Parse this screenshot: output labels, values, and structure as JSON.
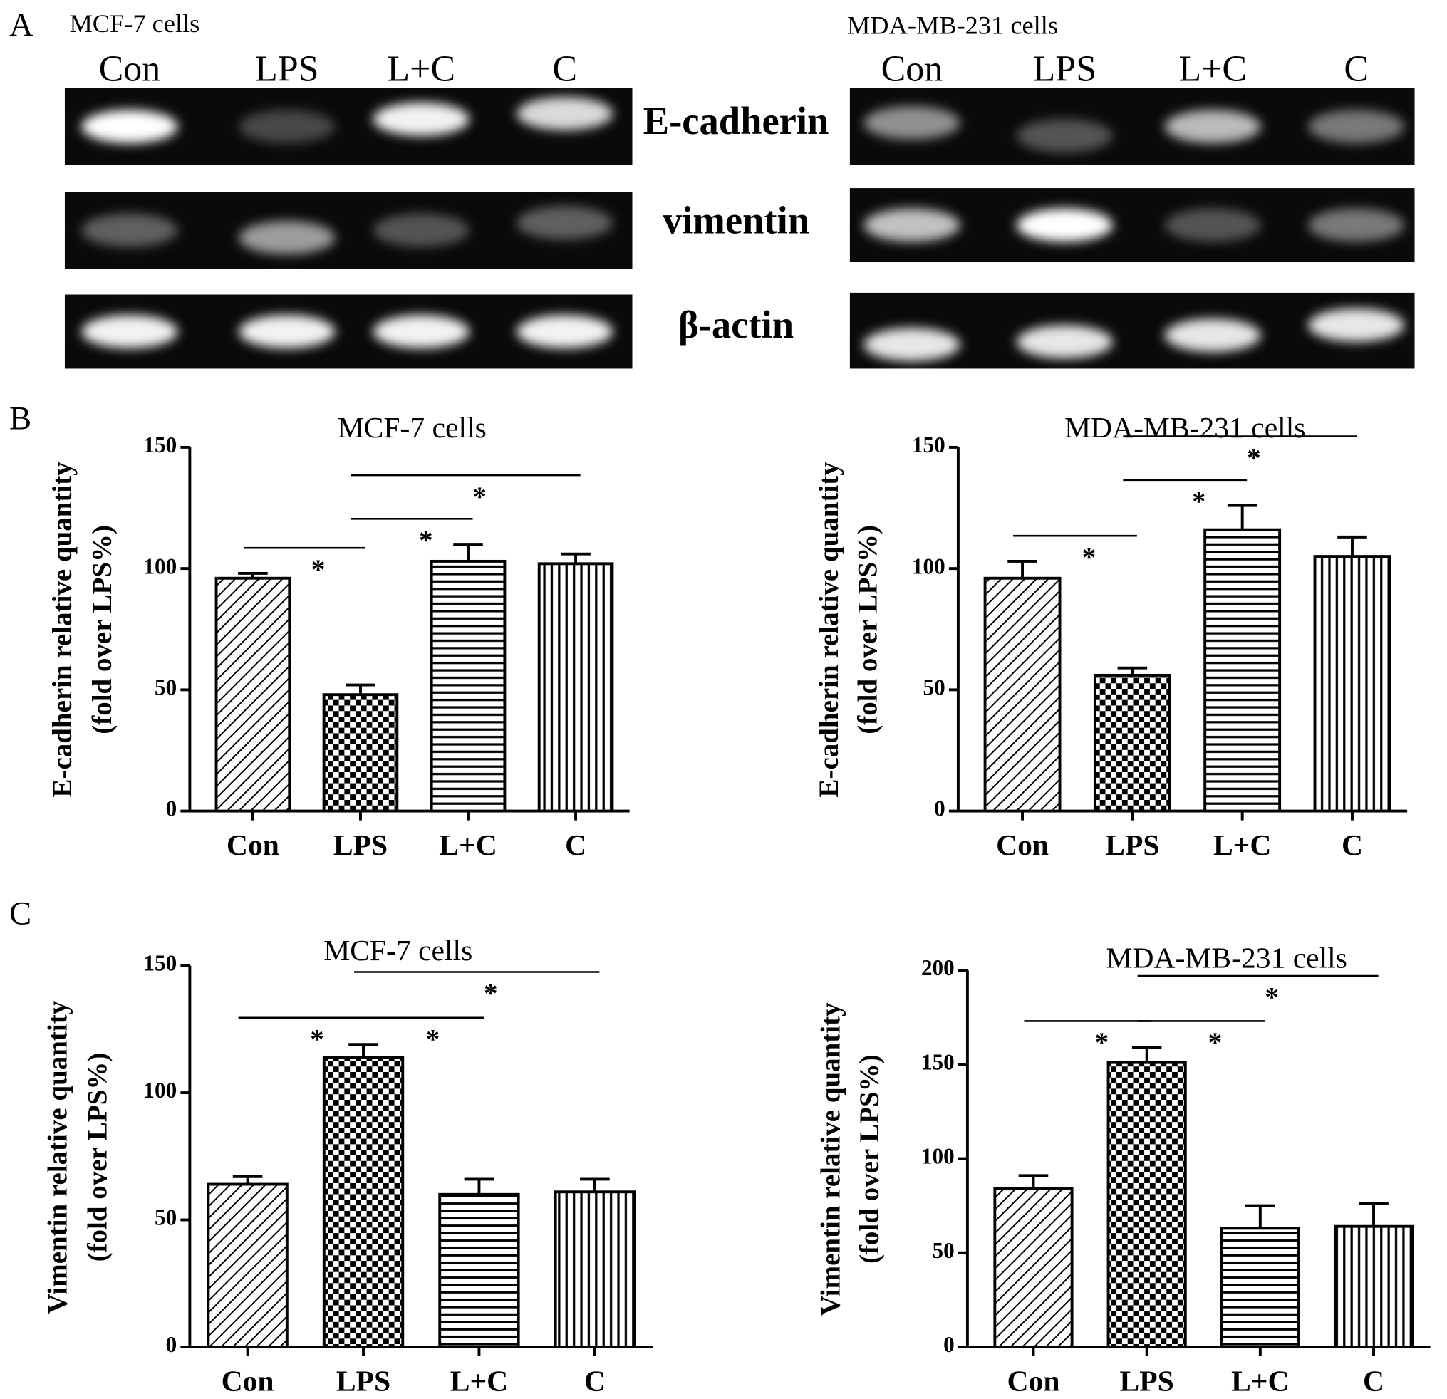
{
  "panel_labels": [
    "A",
    "B",
    "C"
  ],
  "blots": {
    "cells": [
      "MCF-7 cells",
      "MDA-MB-231 cells"
    ],
    "lanes": [
      "Con",
      "LPS",
      "L+C",
      "C"
    ],
    "rows": [
      "E-cadherin",
      "vimentin",
      "β-actin"
    ]
  },
  "chart_data": [
    {
      "type": "bar",
      "title": "MCF-7 cells",
      "ylabel": [
        "E-cadherin relative quantity",
        "(fold over LPS%)"
      ],
      "categories": [
        "Con",
        "LPS",
        "L+C",
        "C"
      ],
      "values": [
        96,
        48,
        103,
        102
      ],
      "errors": [
        2,
        4,
        7,
        4
      ],
      "ylim": [
        0,
        150
      ],
      "yticks": [
        0,
        50,
        100,
        150
      ],
      "color": "#000000",
      "patterns": [
        "diagonal",
        "checker",
        "horizontal",
        "vertical"
      ],
      "annotations": [
        {
          "from": "Con",
          "to": "LPS",
          "label": "*"
        },
        {
          "from": "LPS",
          "to": "L+C",
          "label": "*"
        },
        {
          "from": "LPS",
          "to": "C",
          "label": "*"
        }
      ]
    },
    {
      "type": "bar",
      "title": "MDA-MB-231 cells",
      "ylabel": [
        "E-cadherin relative quantity",
        "(fold over LPS%)"
      ],
      "categories": [
        "Con",
        "LPS",
        "L+C",
        "C"
      ],
      "values": [
        96,
        56,
        116,
        105
      ],
      "errors": [
        7,
        3,
        10,
        8
      ],
      "ylim": [
        0,
        150
      ],
      "yticks": [
        0,
        50,
        100,
        150
      ],
      "color": "#000000",
      "patterns": [
        "diagonal",
        "checker",
        "horizontal",
        "vertical"
      ],
      "annotations": [
        {
          "from": "Con",
          "to": "LPS",
          "label": "*"
        },
        {
          "from": "LPS",
          "to": "L+C",
          "label": "*"
        },
        {
          "from": "LPS",
          "to": "C",
          "label": "*"
        }
      ]
    },
    {
      "type": "bar",
      "title": "MCF-7 cells",
      "ylabel": [
        "Vimentin relative quantity",
        "(fold over LPS%)"
      ],
      "categories": [
        "Con",
        "LPS",
        "L+C",
        "C"
      ],
      "values": [
        64,
        114,
        60,
        61
      ],
      "errors": [
        3,
        5,
        6,
        5
      ],
      "ylim": [
        0,
        150
      ],
      "yticks": [
        0,
        50,
        100,
        150
      ],
      "color": "#000000",
      "patterns": [
        "diagonal",
        "checker",
        "horizontal",
        "vertical"
      ],
      "annotations": [
        {
          "from": "Con",
          "to": "LPS",
          "label": "*"
        },
        {
          "from": "LPS",
          "to": "L+C",
          "label": "*"
        },
        {
          "from": "LPS",
          "to": "C",
          "label": "*"
        }
      ]
    },
    {
      "type": "bar",
      "title": "MDA-MB-231 cells",
      "ylabel": [
        "Vimentin relative quantity",
        "(fold over LPS%)"
      ],
      "categories": [
        "Con",
        "LPS",
        "L+C",
        "C"
      ],
      "values": [
        84,
        151,
        63,
        64
      ],
      "errors": [
        7,
        8,
        12,
        12
      ],
      "ylim": [
        0,
        200
      ],
      "yticks": [
        0,
        50,
        100,
        150,
        200
      ],
      "color": "#000000",
      "patterns": [
        "diagonal",
        "checker",
        "horizontal",
        "vertical"
      ],
      "annotations": [
        {
          "from": "Con",
          "to": "LPS",
          "label": "*"
        },
        {
          "from": "LPS",
          "to": "L+C",
          "label": "*"
        },
        {
          "from": "LPS",
          "to": "C",
          "label": "*"
        }
      ]
    }
  ]
}
